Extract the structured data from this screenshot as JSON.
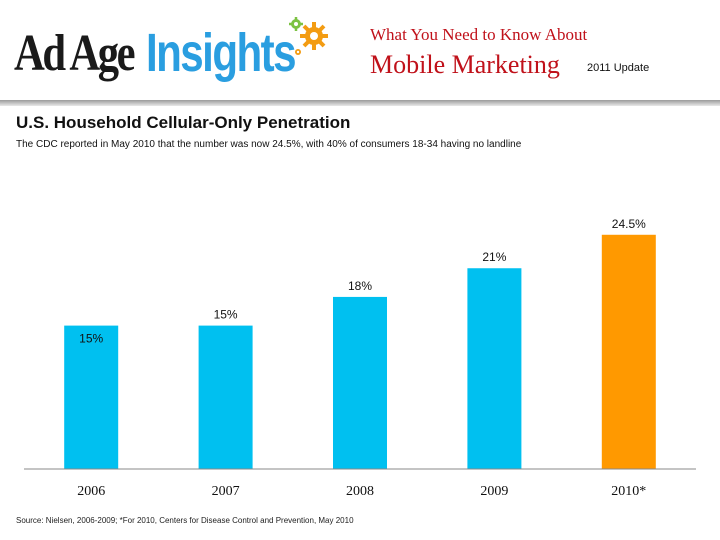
{
  "header": {
    "logo_left": "Ad Age",
    "logo_right": "Insights",
    "line1": "What You Need to Know About",
    "line2": "Mobile Marketing",
    "update": "2011 Update"
  },
  "slide": {
    "title": "U.S. Household Cellular-Only Penetration",
    "subtitle": "The CDC reported in May 2010 that the number was now 24.5%, with 40% of consumers 18-34 having no landline",
    "source": "Source: Nielsen, 2006-2009;  *For 2010, Centers for Disease Control and Prevention, May 2010"
  },
  "colors": {
    "bar": "#00c0f0",
    "highlight": "#ff9900",
    "header_red": "#c0111a",
    "brand_blue": "#2a9ee0"
  },
  "chart_data": {
    "type": "bar",
    "title": "U.S. Household Cellular-Only Penetration",
    "categories": [
      "2006",
      "2007",
      "2008",
      "2009",
      "2010*"
    ],
    "values": [
      15,
      15,
      18,
      21,
      24.5
    ],
    "labels": [
      "15%",
      "15%",
      "18%",
      "21%",
      "24.5%"
    ],
    "highlight_index": 4,
    "xlabel": "",
    "ylabel": "",
    "ylim": [
      0,
      25
    ],
    "grid": false
  }
}
